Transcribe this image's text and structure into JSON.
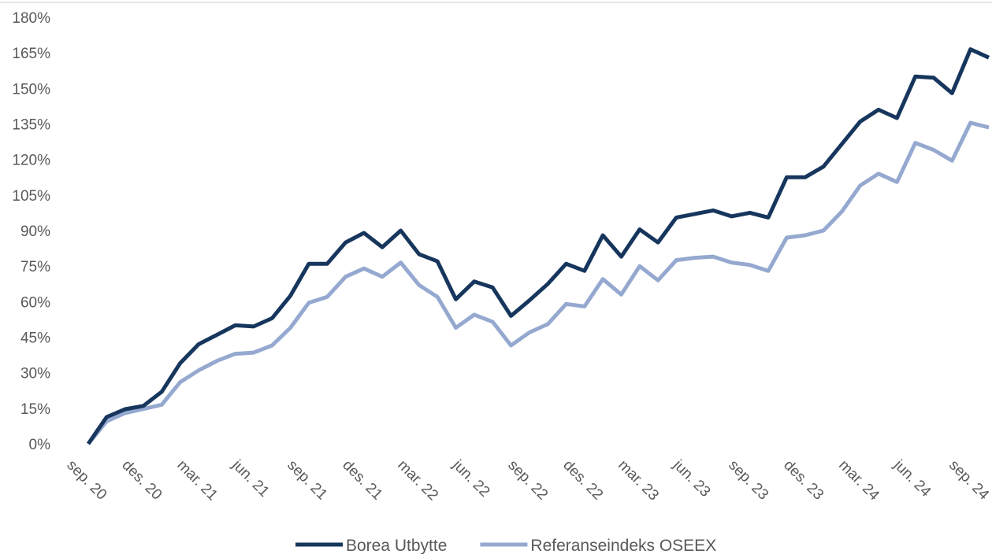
{
  "chart_data": {
    "type": "line",
    "categories": [
      "sep. 20",
      null,
      null,
      "des. 20",
      null,
      null,
      "mar. 21",
      null,
      null,
      "jun. 21",
      null,
      null,
      "sep. 21",
      null,
      null,
      "des. 21",
      null,
      null,
      "mar. 22",
      null,
      null,
      "jun. 22",
      null,
      null,
      "sep. 22",
      null,
      null,
      "des. 22",
      null,
      null,
      "mar. 23",
      null,
      null,
      "jun. 23",
      null,
      null,
      "sep. 23",
      null,
      null,
      "des. 23",
      null,
      null,
      "mar. 24",
      null,
      null,
      "jun. 24",
      null,
      null,
      "sep. 24",
      null
    ],
    "series": [
      {
        "name": "Borea Utbytte",
        "color": "#17365d",
        "values": [
          0,
          11.3,
          14.6,
          16,
          22,
          34,
          42,
          46,
          50,
          49.5,
          53,
          62.5,
          76,
          76,
          85,
          89,
          83,
          90,
          80,
          77,
          61,
          68.5,
          66,
          54,
          60.5,
          67.5,
          76,
          73,
          88,
          79,
          90.5,
          85,
          95.5,
          97,
          98.5,
          96,
          97.5,
          95.5,
          112.5,
          112.5,
          117,
          126.5,
          136,
          141,
          137.5,
          155,
          154.5,
          148,
          166.5,
          163
        ]
      },
      {
        "name": "Referanseindeks OSEEX",
        "color": "#95a9d0",
        "values": [
          0,
          9.5,
          13,
          14.7,
          16.5,
          26,
          31,
          35,
          38,
          38.5,
          41.5,
          49,
          59.5,
          62,
          70.5,
          74,
          70.5,
          76.5,
          67,
          62,
          49,
          54.5,
          51.5,
          41.5,
          47,
          50.5,
          59,
          58,
          69.5,
          63,
          75,
          69,
          77.5,
          78.5,
          79,
          76.5,
          75.5,
          73,
          87,
          88,
          90,
          98,
          109,
          114,
          110.5,
          127,
          124,
          119.5,
          135.5,
          133.5
        ]
      }
    ],
    "ylim": [
      0,
      180
    ],
    "yticks": [
      {
        "value": 0,
        "label": "0%"
      },
      {
        "value": 15,
        "label": "15%"
      },
      {
        "value": 30,
        "label": "30%"
      },
      {
        "value": 45,
        "label": "45%"
      },
      {
        "value": 60,
        "label": "60%"
      },
      {
        "value": 75,
        "label": "75%"
      },
      {
        "value": 90,
        "label": "90%"
      },
      {
        "value": 105,
        "label": "105%"
      },
      {
        "value": 120,
        "label": "120%"
      },
      {
        "value": 135,
        "label": "135%"
      },
      {
        "value": 150,
        "label": "150%"
      },
      {
        "value": 165,
        "label": "165%"
      },
      {
        "value": 180,
        "label": "180%"
      }
    ],
    "legend": "bottom"
  }
}
